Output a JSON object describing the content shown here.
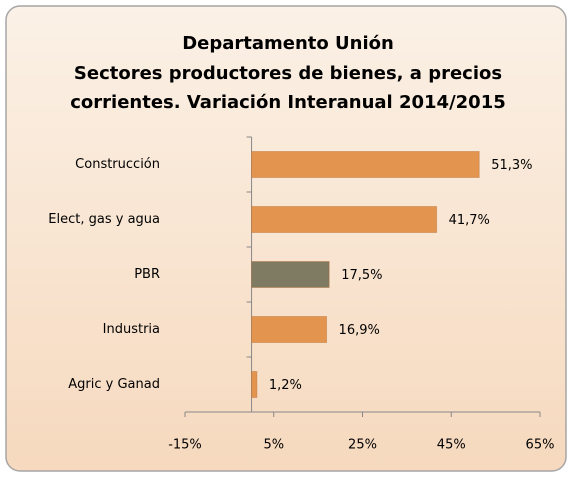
{
  "chart_data": {
    "type": "hbar",
    "title": [
      "Departamento Unión",
      "Sectores productores de bienes, a precios",
      "corrientes. Variación Interanual 2014/2015"
    ],
    "categories": [
      "Construcción",
      "Elect, gas y agua",
      "PBR",
      "Industria",
      "Agric y Ganad"
    ],
    "values": [
      51.3,
      41.7,
      17.5,
      16.9,
      1.2
    ],
    "value_labels": [
      "51,3%",
      "41,7%",
      "17,5%",
      "16,9%",
      "1,2%"
    ],
    "colors": [
      "#e39550",
      "#e39550",
      "#7f7b62",
      "#e39550",
      "#e39550"
    ],
    "xlim": [
      -15,
      65
    ],
    "xticks": [
      {
        "value": -15,
        "label": "-15%"
      },
      {
        "value": 5,
        "label": "5%"
      },
      {
        "value": 25,
        "label": "25%"
      },
      {
        "value": 45,
        "label": "45%"
      },
      {
        "value": 65,
        "label": "65%"
      }
    ]
  }
}
